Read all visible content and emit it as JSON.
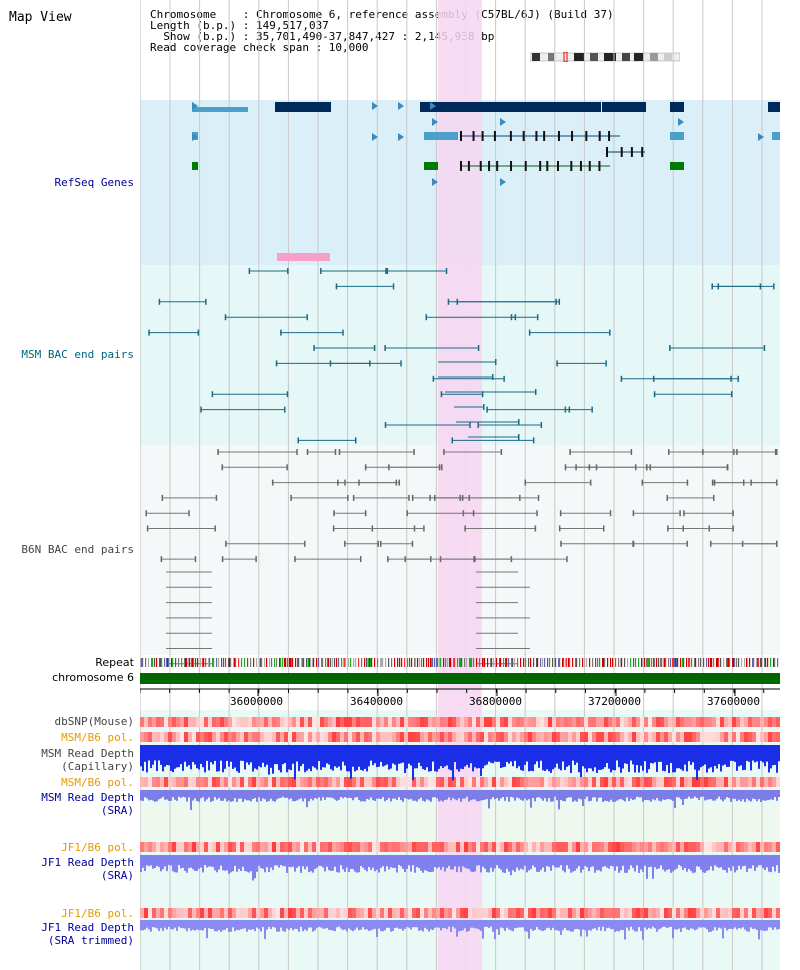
{
  "title": "Map View",
  "header": {
    "line1": "Chromosome    : Chromosome 6, reference assembly (C57BL/6J) (Build 37)",
    "line2": "Length (b.p.) : 149,517,037",
    "line3": "  Show (b.p.) : 35,701,490-37,847,427 : 2,145,938 bp",
    "line4": "Read coverage check span : 10,000"
  },
  "tracks": {
    "refseq": "RefSeq Genes",
    "msm_bac": "MSM BAC end pairs",
    "b6n_bac": "B6N BAC end pairs",
    "repeat": "Repeat",
    "chrom": "chromosome 6",
    "dbsnp": "dbSNP(Mouse)",
    "msm_pol1": "MSM/B6 pol.",
    "msm_depth_cap_1": "MSM Read Depth",
    "msm_depth_cap_2": "(Capillary)",
    "msm_pol2": "MSM/B6 pol.",
    "msm_depth_sra_1": "MSM Read Depth",
    "msm_depth_sra_2": "(SRA)",
    "jf1_pol1": "JF1/B6 pol.",
    "jf1_depth_1": "JF1 Read Depth",
    "jf1_depth_2": "(SRA)",
    "jf1_pol2": "JF1/B6 pol.",
    "jf1_trim_1": "JF1 Read Depth",
    "jf1_trim_2": "(SRA trimmed)"
  },
  "axis": {
    "ticks": [
      "36000000",
      "36400000",
      "36800000",
      "37200000",
      "37600000"
    ]
  },
  "colors": {
    "refseq_bg": "#dbeff9",
    "bac_bg": "#e5f7f7",
    "b6n_bg": "#f4f8f8",
    "highlight": "#f7d6f2",
    "gene_dark": "#002a5c",
    "gene_mid": "#4aa0c8",
    "gene_green": "#007a00",
    "chrom": "#006600",
    "label_blue": "#000099",
    "label_teal": "#006680",
    "label_orange": "#e89900",
    "label_gray": "#444444"
  }
}
